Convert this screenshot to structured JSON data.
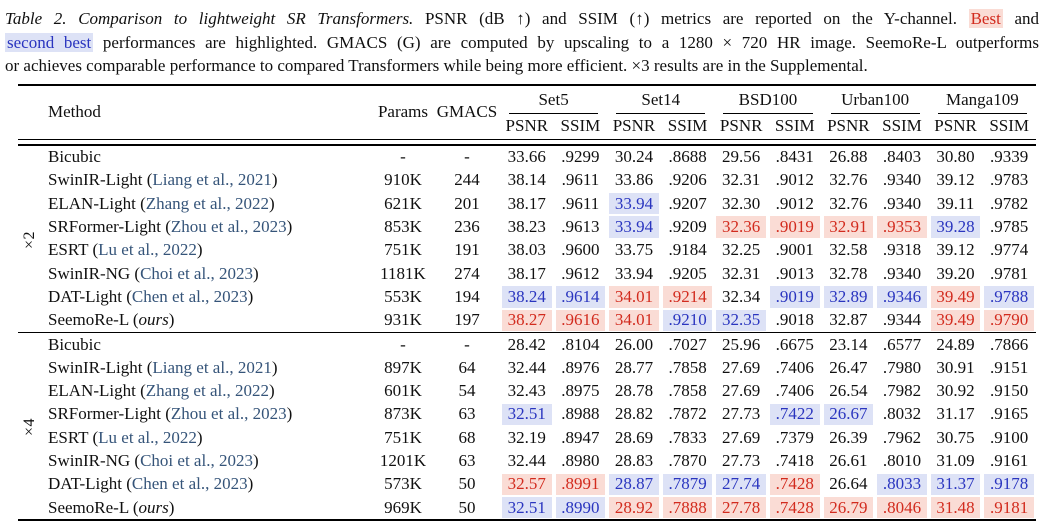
{
  "colors": {
    "bestText": "#d22b1e",
    "bestBg": "#fadcd5",
    "secondText": "#2a35bf",
    "secondBg": "#dde2f6",
    "cite": "#355479"
  },
  "caption": {
    "lines": [
      [
        {
          "t": "Table 2. Comparison to lightweight SR Transformers.",
          "style": "italic"
        },
        {
          "t": " PSNR (dB ↑) and SSIM (↑) metrics are reported on the Y-channel. ",
          "style": "normal"
        },
        {
          "t": "Best",
          "style": "best"
        },
        {
          "t": " and",
          "style": "normal"
        }
      ],
      [
        {
          "t": "second best",
          "style": "second"
        },
        {
          "t": " performances are highlighted. GMACS (G) are computed by upscaling to a 1280 × 720 HR image. SeemoRe-L outperforms",
          "style": "normal"
        }
      ],
      [
        {
          "t": "or achieves comparable performance to compared Transformers while being more efficient. ×3 results are in the Supplemental.",
          "style": "normal"
        }
      ]
    ]
  },
  "table": {
    "header": {
      "method": "Method",
      "params": "Params",
      "gmacs": "GMACS",
      "datasets": [
        "Set5",
        "Set14",
        "BSD100",
        "Urban100",
        "Manga109"
      ],
      "metrics": [
        "PSNR",
        "SSIM"
      ]
    },
    "ours_label": "ours",
    "sections": [
      {
        "label": "×2",
        "rows": [
          {
            "method": "Bicubic",
            "cite": null,
            "ours": false,
            "params": "-",
            "gmacs": "-",
            "values": [
              [
                "33.66",
                ""
              ],
              [
                ".9299",
                ""
              ],
              [
                "30.24",
                ""
              ],
              [
                ".8688",
                ""
              ],
              [
                "29.56",
                ""
              ],
              [
                ".8431",
                ""
              ],
              [
                "26.88",
                ""
              ],
              [
                ".8403",
                ""
              ],
              [
                "30.80",
                ""
              ],
              [
                ".9339",
                ""
              ]
            ]
          },
          {
            "method": "SwinIR-Light",
            "cite": "Liang et al., 2021",
            "ours": false,
            "params": "910K",
            "gmacs": "244",
            "values": [
              [
                "38.14",
                ""
              ],
              [
                ".9611",
                ""
              ],
              [
                "33.86",
                ""
              ],
              [
                ".9206",
                ""
              ],
              [
                "32.31",
                ""
              ],
              [
                ".9012",
                ""
              ],
              [
                "32.76",
                ""
              ],
              [
                ".9340",
                ""
              ],
              [
                "39.12",
                ""
              ],
              [
                ".9783",
                ""
              ]
            ]
          },
          {
            "method": "ELAN-Light",
            "cite": "Zhang et al., 2022",
            "ours": false,
            "params": "621K",
            "gmacs": "201",
            "values": [
              [
                "38.17",
                ""
              ],
              [
                ".9611",
                ""
              ],
              [
                "33.94",
                "s"
              ],
              [
                ".9207",
                ""
              ],
              [
                "32.30",
                ""
              ],
              [
                ".9012",
                ""
              ],
              [
                "32.76",
                ""
              ],
              [
                ".9340",
                ""
              ],
              [
                "39.11",
                ""
              ],
              [
                ".9782",
                ""
              ]
            ]
          },
          {
            "method": "SRFormer-Light",
            "cite": "Zhou et al., 2023",
            "ours": false,
            "params": "853K",
            "gmacs": "236",
            "values": [
              [
                "38.23",
                ""
              ],
              [
                ".9613",
                ""
              ],
              [
                "33.94",
                "s"
              ],
              [
                ".9209",
                ""
              ],
              [
                "32.36",
                "b"
              ],
              [
                ".9019",
                "b"
              ],
              [
                "32.91",
                "b"
              ],
              [
                ".9353",
                "b"
              ],
              [
                "39.28",
                "s"
              ],
              [
                ".9785",
                ""
              ]
            ]
          },
          {
            "method": "ESRT",
            "cite": "Lu et al., 2022",
            "ours": false,
            "params": "751K",
            "gmacs": "191",
            "values": [
              [
                "38.03",
                ""
              ],
              [
                ".9600",
                ""
              ],
              [
                "33.75",
                ""
              ],
              [
                ".9184",
                ""
              ],
              [
                "32.25",
                ""
              ],
              [
                ".9001",
                ""
              ],
              [
                "32.58",
                ""
              ],
              [
                ".9318",
                ""
              ],
              [
                "39.12",
                ""
              ],
              [
                ".9774",
                ""
              ]
            ]
          },
          {
            "method": "SwinIR-NG",
            "cite": "Choi et al., 2023",
            "ours": false,
            "params": "1181K",
            "gmacs": "274",
            "values": [
              [
                "38.17",
                ""
              ],
              [
                ".9612",
                ""
              ],
              [
                "33.94",
                ""
              ],
              [
                ".9205",
                ""
              ],
              [
                "32.31",
                ""
              ],
              [
                ".9013",
                ""
              ],
              [
                "32.78",
                ""
              ],
              [
                ".9340",
                ""
              ],
              [
                "39.20",
                ""
              ],
              [
                ".9781",
                ""
              ]
            ]
          },
          {
            "method": "DAT-Light",
            "cite": "Chen et al., 2023",
            "ours": false,
            "params": "553K",
            "gmacs": "194",
            "values": [
              [
                "38.24",
                "s"
              ],
              [
                ".9614",
                "s"
              ],
              [
                "34.01",
                "b"
              ],
              [
                ".9214",
                "b"
              ],
              [
                "32.34",
                ""
              ],
              [
                ".9019",
                "s"
              ],
              [
                "32.89",
                "s"
              ],
              [
                ".9346",
                "s"
              ],
              [
                "39.49",
                "b"
              ],
              [
                ".9788",
                "s"
              ]
            ]
          },
          {
            "method": "SeemoRe-L",
            "cite": null,
            "ours": true,
            "params": "931K",
            "gmacs": "197",
            "values": [
              [
                "38.27",
                "b"
              ],
              [
                ".9616",
                "b"
              ],
              [
                "34.01",
                "b"
              ],
              [
                ".9210",
                "s"
              ],
              [
                "32.35",
                "s"
              ],
              [
                ".9018",
                ""
              ],
              [
                "32.87",
                ""
              ],
              [
                ".9344",
                ""
              ],
              [
                "39.49",
                "b"
              ],
              [
                ".9790",
                "b"
              ]
            ]
          }
        ]
      },
      {
        "label": "×4",
        "rows": [
          {
            "method": "Bicubic",
            "cite": null,
            "ours": false,
            "params": "-",
            "gmacs": "-",
            "values": [
              [
                "28.42",
                ""
              ],
              [
                ".8104",
                ""
              ],
              [
                "26.00",
                ""
              ],
              [
                ".7027",
                ""
              ],
              [
                "25.96",
                ""
              ],
              [
                ".6675",
                ""
              ],
              [
                "23.14",
                ""
              ],
              [
                ".6577",
                ""
              ],
              [
                "24.89",
                ""
              ],
              [
                ".7866",
                ""
              ]
            ]
          },
          {
            "method": "SwinIR-Light",
            "cite": "Liang et al., 2021",
            "ours": false,
            "params": "897K",
            "gmacs": "64",
            "values": [
              [
                "32.44",
                ""
              ],
              [
                ".8976",
                ""
              ],
              [
                "28.77",
                ""
              ],
              [
                ".7858",
                ""
              ],
              [
                "27.69",
                ""
              ],
              [
                ".7406",
                ""
              ],
              [
                "26.47",
                ""
              ],
              [
                ".7980",
                ""
              ],
              [
                "30.91",
                ""
              ],
              [
                ".9151",
                ""
              ]
            ]
          },
          {
            "method": "ELAN-Light",
            "cite": "Zhang et al., 2022",
            "ours": false,
            "params": "601K",
            "gmacs": "54",
            "values": [
              [
                "32.43",
                ""
              ],
              [
                ".8975",
                ""
              ],
              [
                "28.78",
                ""
              ],
              [
                ".7858",
                ""
              ],
              [
                "27.69",
                ""
              ],
              [
                ".7406",
                ""
              ],
              [
                "26.54",
                ""
              ],
              [
                ".7982",
                ""
              ],
              [
                "30.92",
                ""
              ],
              [
                ".9150",
                ""
              ]
            ]
          },
          {
            "method": "SRFormer-Light",
            "cite": "Zhou et al., 2023",
            "ours": false,
            "params": "873K",
            "gmacs": "63",
            "values": [
              [
                "32.51",
                "s"
              ],
              [
                ".8988",
                ""
              ],
              [
                "28.82",
                ""
              ],
              [
                ".7872",
                ""
              ],
              [
                "27.73",
                ""
              ],
              [
                ".7422",
                "s"
              ],
              [
                "26.67",
                "s"
              ],
              [
                ".8032",
                ""
              ],
              [
                "31.17",
                ""
              ],
              [
                ".9165",
                ""
              ]
            ]
          },
          {
            "method": "ESRT",
            "cite": "Lu et al., 2022",
            "ours": false,
            "params": "751K",
            "gmacs": "68",
            "values": [
              [
                "32.19",
                ""
              ],
              [
                ".8947",
                ""
              ],
              [
                "28.69",
                ""
              ],
              [
                ".7833",
                ""
              ],
              [
                "27.69",
                ""
              ],
              [
                ".7379",
                ""
              ],
              [
                "26.39",
                ""
              ],
              [
                ".7962",
                ""
              ],
              [
                "30.75",
                ""
              ],
              [
                ".9100",
                ""
              ]
            ]
          },
          {
            "method": "SwinIR-NG",
            "cite": "Choi et al., 2023",
            "ours": false,
            "params": "1201K",
            "gmacs": "63",
            "values": [
              [
                "32.44",
                ""
              ],
              [
                ".8980",
                ""
              ],
              [
                "28.83",
                ""
              ],
              [
                ".7870",
                ""
              ],
              [
                "27.73",
                ""
              ],
              [
                ".7418",
                ""
              ],
              [
                "26.61",
                ""
              ],
              [
                ".8010",
                ""
              ],
              [
                "31.09",
                ""
              ],
              [
                ".9161",
                ""
              ]
            ]
          },
          {
            "method": "DAT-Light",
            "cite": "Chen et al., 2023",
            "ours": false,
            "params": "573K",
            "gmacs": "50",
            "values": [
              [
                "32.57",
                "b"
              ],
              [
                ".8991",
                "b"
              ],
              [
                "28.87",
                "s"
              ],
              [
                ".7879",
                "s"
              ],
              [
                "27.74",
                "s"
              ],
              [
                ".7428",
                "b"
              ],
              [
                "26.64",
                ""
              ],
              [
                ".8033",
                "s"
              ],
              [
                "31.37",
                "s"
              ],
              [
                ".9178",
                "s"
              ]
            ]
          },
          {
            "method": "SeemoRe-L",
            "cite": null,
            "ours": true,
            "params": "969K",
            "gmacs": "50",
            "values": [
              [
                "32.51",
                "s"
              ],
              [
                ".8990",
                "s"
              ],
              [
                "28.92",
                "b"
              ],
              [
                ".7888",
                "b"
              ],
              [
                "27.78",
                "b"
              ],
              [
                ".7428",
                "b"
              ],
              [
                "26.79",
                "b"
              ],
              [
                ".8046",
                "b"
              ],
              [
                "31.48",
                "b"
              ],
              [
                ".9181",
                "b"
              ]
            ]
          }
        ]
      }
    ]
  }
}
